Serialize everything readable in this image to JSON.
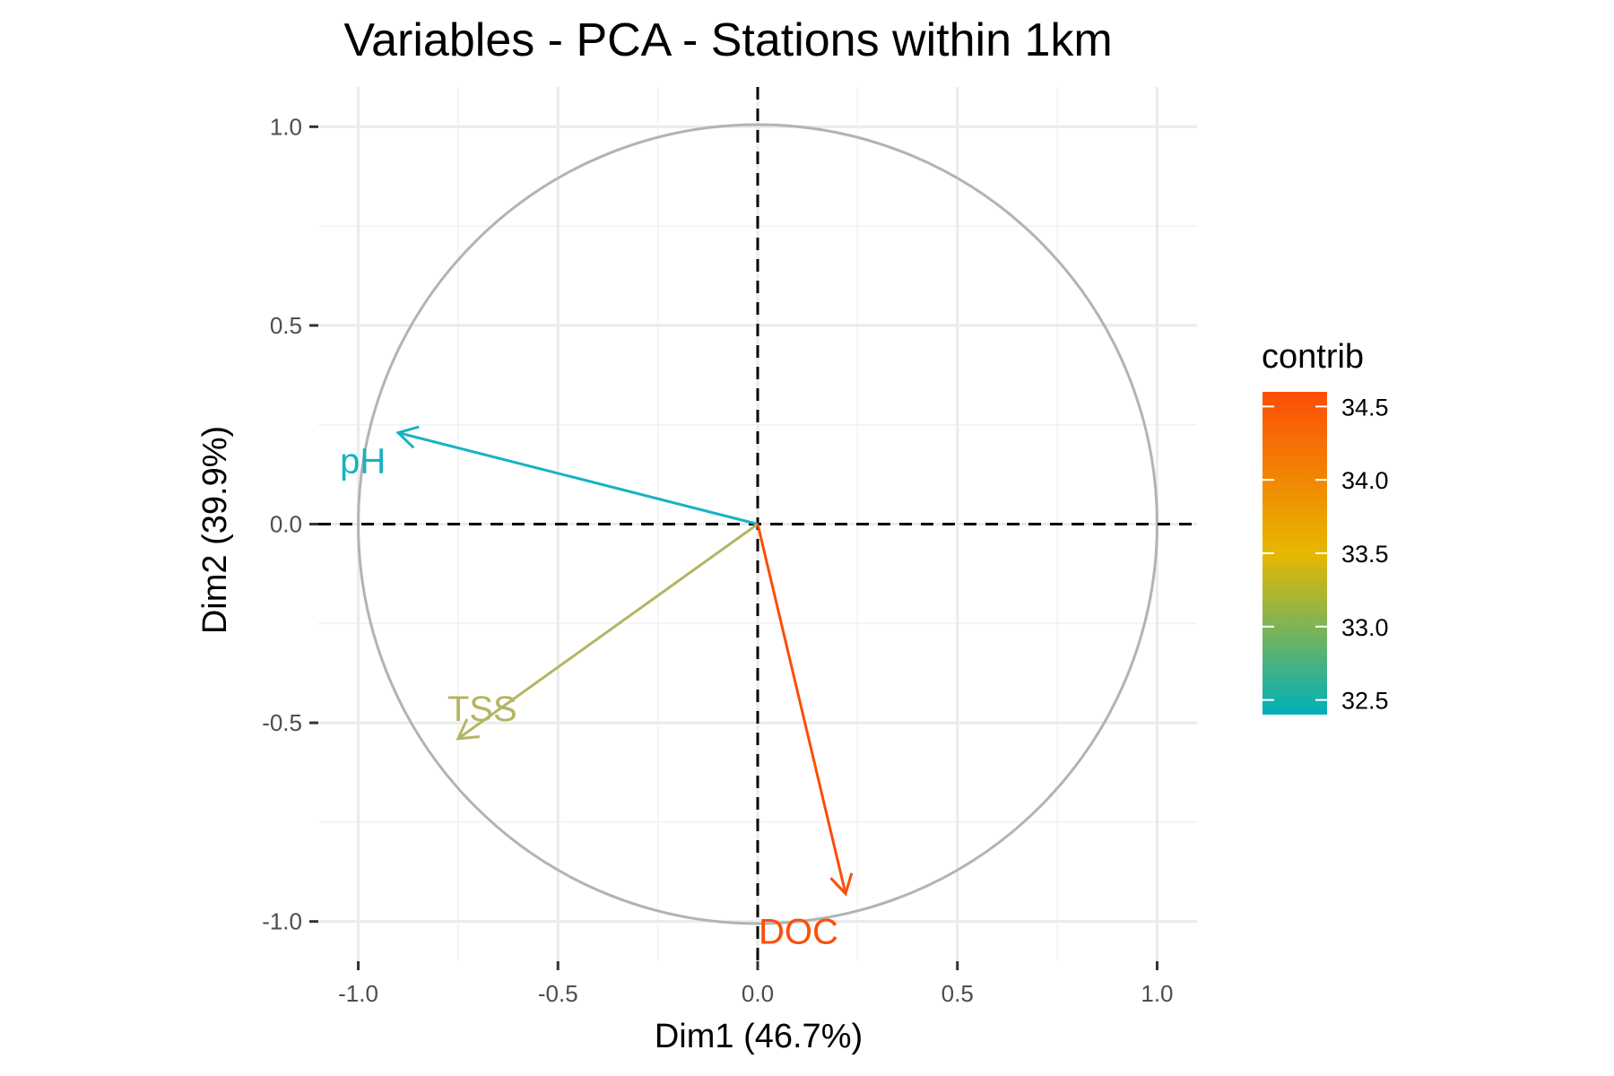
{
  "chart_data": {
    "type": "scatter",
    "title": "Variables - PCA - Stations within 1km",
    "xlabel": "Dim1 (46.7%)",
    "ylabel": "Dim2 (39.9%)",
    "xlim": [
      -1.1,
      1.1
    ],
    "ylim": [
      -1.1,
      1.1
    ],
    "xticks": [
      -1.0,
      -0.5,
      0.0,
      0.5,
      1.0
    ],
    "yticks": [
      -1.0,
      -0.5,
      0.0,
      0.5,
      1.0
    ],
    "xtick_labels": [
      "-1.0",
      "-0.5",
      "0.0",
      "0.5",
      "1.0"
    ],
    "ytick_labels": [
      "-1.0",
      "-0.5",
      "0.0",
      "0.5",
      "1.0"
    ],
    "grid": true,
    "correlation_circle": true,
    "variables": [
      {
        "name": "pH",
        "x": -0.9,
        "y": 0.23,
        "contrib": 32.4,
        "color": "#17b2c2"
      },
      {
        "name": "TSS",
        "x": -0.75,
        "y": -0.54,
        "contrib": 33.0,
        "color": "#b5b462"
      },
      {
        "name": "DOC",
        "x": 0.22,
        "y": -0.93,
        "contrib": 34.6,
        "color": "#fc4e07"
      }
    ],
    "legend": {
      "title": "contrib",
      "placement": "right",
      "range": [
        32.4,
        34.6
      ],
      "ticks": [
        32.5,
        33.0,
        33.5,
        34.0,
        34.5
      ],
      "tick_labels": [
        "32.5",
        "33.0",
        "33.5",
        "34.0",
        "34.5"
      ],
      "gradient_colors": [
        "#00afbb",
        "#e7b800",
        "#fc4e07"
      ]
    }
  }
}
